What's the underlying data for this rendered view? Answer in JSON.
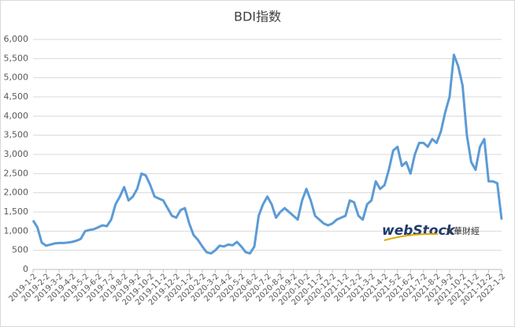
{
  "chart_data": {
    "type": "line",
    "title": "BDI指数",
    "categories": [
      "2019-1-2",
      null,
      null,
      "2019-2-2",
      null,
      null,
      "2019-3-2",
      null,
      null,
      "2019-4-2",
      null,
      null,
      "2019-5-2",
      null,
      null,
      "2019-6-2",
      null,
      null,
      "2019-7-2",
      null,
      null,
      "2019-8-2",
      null,
      null,
      "2019-9-2",
      null,
      null,
      "2019-10-2",
      null,
      null,
      "2019-11-2",
      null,
      null,
      "2019-12-2",
      null,
      null,
      "2020-1-2",
      null,
      null,
      "2020-2-2",
      null,
      null,
      "2020-3-2",
      null,
      null,
      "2020-4-2",
      null,
      null,
      "2020-5-2",
      null,
      null,
      "2020-6-2",
      null,
      null,
      "2020-7-2",
      null,
      null,
      "2020-8-2",
      null,
      null,
      "2020-9-2",
      null,
      null,
      "2020-10-2",
      null,
      null,
      "2020-11-2",
      null,
      null,
      "2020-12-2",
      null,
      null,
      "2021-1-2",
      null,
      null,
      "2021-2-2",
      null,
      null,
      "2021-3-2",
      null,
      null,
      "2021-4-2",
      null,
      null,
      "2021-5-2",
      null,
      null,
      "2021-6-2",
      null,
      null,
      "2021-7-2",
      null,
      null,
      "2021-8-2",
      null,
      null,
      "2021-9-2",
      null,
      null,
      "2021-10-2",
      null,
      null,
      "2021-11-2",
      null,
      null,
      "2021-12-2",
      null,
      null,
      "2022-1-2"
    ],
    "series": [
      {
        "name": "BDI",
        "color": "#5b9bd5",
        "values": [
          1280,
          1100,
          700,
          620,
          650,
          680,
          690,
          690,
          700,
          720,
          750,
          800,
          1000,
          1030,
          1050,
          1100,
          1150,
          1130,
          1300,
          1700,
          1900,
          2150,
          1800,
          1900,
          2100,
          2500,
          2450,
          2200,
          1900,
          1850,
          1800,
          1600,
          1400,
          1350,
          1550,
          1600,
          1200,
          900,
          770,
          600,
          450,
          420,
          500,
          620,
          600,
          650,
          630,
          720,
          600,
          450,
          420,
          600,
          1400,
          1700,
          1900,
          1700,
          1350,
          1500,
          1600,
          1500,
          1400,
          1300,
          1800,
          2100,
          1800,
          1400,
          1300,
          1200,
          1150,
          1200,
          1300,
          1350,
          1400,
          1800,
          1750,
          1400,
          1300,
          1700,
          1800,
          2300,
          2100,
          2200,
          2600,
          3100,
          3200,
          2700,
          2800,
          2500,
          3000,
          3300,
          3300,
          3200,
          3400,
          3300,
          3600,
          4100,
          4500,
          5600,
          5300,
          4800,
          3500,
          2800,
          2600,
          3200,
          3400,
          2300,
          2300,
          2250,
          1300
        ]
      }
    ],
    "ylim": [
      0,
      6000
    ],
    "yticks": [
      0,
      500,
      {
        "value": 1000,
        "label": "1,000"
      },
      {
        "value": 1500,
        "label": "1,500"
      },
      {
        "value": 2000,
        "label": "2,000"
      },
      {
        "value": 2500,
        "label": "2,500"
      },
      {
        "value": 3000,
        "label": "3,000"
      },
      {
        "value": 3500,
        "label": "3,500"
      },
      {
        "value": 4000,
        "label": "4,000"
      },
      {
        "value": 4500,
        "label": "4,500"
      },
      {
        "value": 5000,
        "label": "5,000"
      },
      {
        "value": 5500,
        "label": "5,500"
      },
      {
        "value": 6000,
        "label": "6,000"
      }
    ],
    "grid": true,
    "annotations": [
      "webStock",
      "文華財經"
    ]
  }
}
